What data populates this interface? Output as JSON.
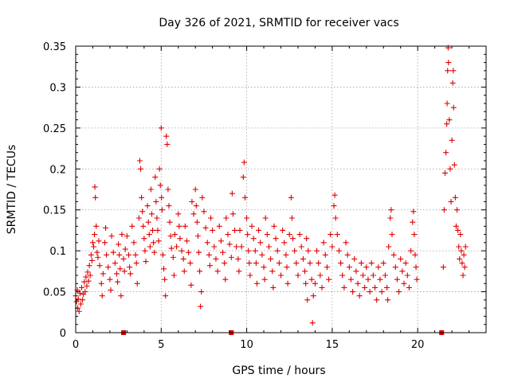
{
  "chart_data": {
    "type": "scatter",
    "title": "Day 326 of 2021, SRMTID for receiver vacs",
    "xlabel": "GPS time / hours",
    "ylabel": "SRMTID / TECUs",
    "xlim": [
      0,
      24
    ],
    "ylim": [
      0,
      0.35
    ],
    "x_ticks": [
      0,
      5,
      10,
      15,
      20
    ],
    "x_tick_labels": [
      "0",
      "5",
      "10",
      "15",
      "20"
    ],
    "y_ticks": [
      0,
      0.05,
      0.1,
      0.15,
      0.2,
      0.25,
      0.3,
      0.35
    ],
    "y_tick_labels": [
      "0",
      "0.05",
      "0.1",
      "0.15",
      "0.2",
      "0.25",
      "0.3",
      "0.35"
    ],
    "grid": true,
    "legend": "none",
    "marker": "+",
    "color": "#e00000",
    "gap_markers_x": [
      2.8,
      9.1,
      21.4
    ],
    "series": [
      {
        "name": "SRMTID",
        "points": [
          [
            0.0,
            0.045
          ],
          [
            0.05,
            0.038
          ],
          [
            0.1,
            0.052
          ],
          [
            0.12,
            0.03
          ],
          [
            0.15,
            0.041
          ],
          [
            0.2,
            0.026
          ],
          [
            0.25,
            0.048
          ],
          [
            0.3,
            0.035
          ],
          [
            0.35,
            0.055
          ],
          [
            0.4,
            0.04
          ],
          [
            0.45,
            0.047
          ],
          [
            0.5,
            0.062
          ],
          [
            0.55,
            0.05
          ],
          [
            0.6,
            0.068
          ],
          [
            0.65,
            0.057
          ],
          [
            0.7,
            0.074
          ],
          [
            0.75,
            0.063
          ],
          [
            0.8,
            0.082
          ],
          [
            0.85,
            0.07
          ],
          [
            0.9,
            0.095
          ],
          [
            0.95,
            0.088
          ],
          [
            1.0,
            0.11
          ],
          [
            1.05,
            0.105
          ],
          [
            1.1,
            0.12
          ],
          [
            1.12,
            0.178
          ],
          [
            1.15,
            0.165
          ],
          [
            1.2,
            0.13
          ],
          [
            1.25,
            0.098
          ],
          [
            1.3,
            0.092
          ],
          [
            1.35,
            0.112
          ],
          [
            1.4,
            0.082
          ],
          [
            1.5,
            0.06
          ],
          [
            1.55,
            0.045
          ],
          [
            1.6,
            0.072
          ],
          [
            1.7,
            0.11
          ],
          [
            1.75,
            0.128
          ],
          [
            1.8,
            0.095
          ],
          [
            1.9,
            0.08
          ],
          [
            2.0,
            0.065
          ],
          [
            2.05,
            0.052
          ],
          [
            2.1,
            0.118
          ],
          [
            2.2,
            0.098
          ],
          [
            2.3,
            0.085
          ],
          [
            2.4,
            0.072
          ],
          [
            2.45,
            0.062
          ],
          [
            2.5,
            0.108
          ],
          [
            2.55,
            0.095
          ],
          [
            2.6,
            0.078
          ],
          [
            2.65,
            0.045
          ],
          [
            2.7,
            0.12
          ],
          [
            2.8,
            0.09
          ],
          [
            2.85,
            0.075
          ],
          [
            2.9,
            0.102
          ],
          [
            3.0,
            0.118
          ],
          [
            3.1,
            0.095
          ],
          [
            3.15,
            0.08
          ],
          [
            3.2,
            0.072
          ],
          [
            3.3,
            0.13
          ],
          [
            3.4,
            0.11
          ],
          [
            3.5,
            0.095
          ],
          [
            3.55,
            0.085
          ],
          [
            3.6,
            0.06
          ],
          [
            3.7,
            0.14
          ],
          [
            3.75,
            0.21
          ],
          [
            3.8,
            0.2
          ],
          [
            3.85,
            0.165
          ],
          [
            3.9,
            0.148
          ],
          [
            3.95,
            0.13
          ],
          [
            4.0,
            0.115
          ],
          [
            4.05,
            0.1
          ],
          [
            4.1,
            0.087
          ],
          [
            4.2,
            0.155
          ],
          [
            4.25,
            0.135
          ],
          [
            4.3,
            0.12
          ],
          [
            4.35,
            0.105
          ],
          [
            4.4,
            0.175
          ],
          [
            4.45,
            0.145
          ],
          [
            4.5,
            0.125
          ],
          [
            4.55,
            0.11
          ],
          [
            4.6,
            0.098
          ],
          [
            4.65,
            0.19
          ],
          [
            4.7,
            0.16
          ],
          [
            4.75,
            0.14
          ],
          [
            4.8,
            0.125
          ],
          [
            4.85,
            0.112
          ],
          [
            4.9,
            0.2
          ],
          [
            4.95,
            0.18
          ],
          [
            5.0,
            0.25
          ],
          [
            5.02,
            0.165
          ],
          [
            5.05,
            0.15
          ],
          [
            5.1,
            0.095
          ],
          [
            5.15,
            0.078
          ],
          [
            5.2,
            0.065
          ],
          [
            5.25,
            0.045
          ],
          [
            5.3,
            0.24
          ],
          [
            5.35,
            0.23
          ],
          [
            5.4,
            0.175
          ],
          [
            5.45,
            0.155
          ],
          [
            5.5,
            0.135
          ],
          [
            5.55,
            0.118
          ],
          [
            5.6,
            0.103
          ],
          [
            5.7,
            0.092
          ],
          [
            5.75,
            0.07
          ],
          [
            5.8,
            0.12
          ],
          [
            5.9,
            0.105
          ],
          [
            6.0,
            0.145
          ],
          [
            6.05,
            0.13
          ],
          [
            6.1,
            0.115
          ],
          [
            6.2,
            0.1
          ],
          [
            6.3,
            0.09
          ],
          [
            6.35,
            0.075
          ],
          [
            6.4,
            0.13
          ],
          [
            6.5,
            0.112
          ],
          [
            6.6,
            0.098
          ],
          [
            6.7,
            0.085
          ],
          [
            6.75,
            0.058
          ],
          [
            6.8,
            0.16
          ],
          [
            6.9,
            0.145
          ],
          [
            7.0,
            0.175
          ],
          [
            7.05,
            0.155
          ],
          [
            7.1,
            0.135
          ],
          [
            7.15,
            0.118
          ],
          [
            7.2,
            0.098
          ],
          [
            7.25,
            0.075
          ],
          [
            7.3,
            0.032
          ],
          [
            7.35,
            0.05
          ],
          [
            7.4,
            0.165
          ],
          [
            7.5,
            0.148
          ],
          [
            7.6,
            0.128
          ],
          [
            7.7,
            0.11
          ],
          [
            7.8,
            0.095
          ],
          [
            7.85,
            0.082
          ],
          [
            7.9,
            0.14
          ],
          [
            8.0,
            0.125
          ],
          [
            8.1,
            0.105
          ],
          [
            8.2,
            0.09
          ],
          [
            8.3,
            0.075
          ],
          [
            8.4,
            0.13
          ],
          [
            8.5,
            0.112
          ],
          [
            8.6,
            0.098
          ],
          [
            8.7,
            0.085
          ],
          [
            8.75,
            0.065
          ],
          [
            8.8,
            0.14
          ],
          [
            8.9,
            0.12
          ],
          [
            9.0,
            0.108
          ],
          [
            9.1,
            0.092
          ],
          [
            9.15,
            0.17
          ],
          [
            9.2,
            0.145
          ],
          [
            9.3,
            0.125
          ],
          [
            9.4,
            0.105
          ],
          [
            9.5,
            0.09
          ],
          [
            9.55,
            0.075
          ],
          [
            9.6,
            0.125
          ],
          [
            9.7,
            0.105
          ],
          [
            9.8,
            0.19
          ],
          [
            9.85,
            0.208
          ],
          [
            9.9,
            0.165
          ],
          [
            10.0,
            0.14
          ],
          [
            10.05,
            0.12
          ],
          [
            10.1,
            0.1
          ],
          [
            10.15,
            0.085
          ],
          [
            10.2,
            0.07
          ],
          [
            10.3,
            0.13
          ],
          [
            10.4,
            0.115
          ],
          [
            10.5,
            0.1
          ],
          [
            10.55,
            0.085
          ],
          [
            10.6,
            0.06
          ],
          [
            10.7,
            0.125
          ],
          [
            10.8,
            0.11
          ],
          [
            10.9,
            0.095
          ],
          [
            11.0,
            0.08
          ],
          [
            11.05,
            0.065
          ],
          [
            11.1,
            0.14
          ],
          [
            11.2,
            0.12
          ],
          [
            11.3,
            0.105
          ],
          [
            11.4,
            0.09
          ],
          [
            11.5,
            0.075
          ],
          [
            11.55,
            0.055
          ],
          [
            11.6,
            0.13
          ],
          [
            11.7,
            0.115
          ],
          [
            11.8,
            0.1
          ],
          [
            11.9,
            0.085
          ],
          [
            12.0,
            0.07
          ],
          [
            12.1,
            0.125
          ],
          [
            12.2,
            0.11
          ],
          [
            12.3,
            0.095
          ],
          [
            12.35,
            0.08
          ],
          [
            12.4,
            0.06
          ],
          [
            12.5,
            0.12
          ],
          [
            12.6,
            0.165
          ],
          [
            12.65,
            0.14
          ],
          [
            12.7,
            0.115
          ],
          [
            12.8,
            0.1
          ],
          [
            12.9,
            0.085
          ],
          [
            13.0,
            0.07
          ],
          [
            13.1,
            0.12
          ],
          [
            13.2,
            0.105
          ],
          [
            13.3,
            0.09
          ],
          [
            13.4,
            0.075
          ],
          [
            13.45,
            0.06
          ],
          [
            13.5,
            0.115
          ],
          [
            13.55,
            0.04
          ],
          [
            13.6,
            0.1
          ],
          [
            13.7,
            0.085
          ],
          [
            13.8,
            0.065
          ],
          [
            13.85,
            0.012
          ],
          [
            13.9,
            0.045
          ],
          [
            14.0,
            0.06
          ],
          [
            14.1,
            0.1
          ],
          [
            14.2,
            0.085
          ],
          [
            14.3,
            0.07
          ],
          [
            14.4,
            0.055
          ],
          [
            14.5,
            0.11
          ],
          [
            14.6,
            0.095
          ],
          [
            14.7,
            0.08
          ],
          [
            14.8,
            0.065
          ],
          [
            14.9,
            0.12
          ],
          [
            15.0,
            0.105
          ],
          [
            15.1,
            0.155
          ],
          [
            15.15,
            0.168
          ],
          [
            15.2,
            0.14
          ],
          [
            15.3,
            0.12
          ],
          [
            15.4,
            0.1
          ],
          [
            15.5,
            0.085
          ],
          [
            15.6,
            0.07
          ],
          [
            15.7,
            0.055
          ],
          [
            15.8,
            0.11
          ],
          [
            15.9,
            0.095
          ],
          [
            16.0,
            0.08
          ],
          [
            16.1,
            0.065
          ],
          [
            16.2,
            0.05
          ],
          [
            16.3,
            0.09
          ],
          [
            16.4,
            0.075
          ],
          [
            16.5,
            0.06
          ],
          [
            16.6,
            0.045
          ],
          [
            16.7,
            0.085
          ],
          [
            16.8,
            0.07
          ],
          [
            16.9,
            0.055
          ],
          [
            17.0,
            0.08
          ],
          [
            17.1,
            0.065
          ],
          [
            17.2,
            0.05
          ],
          [
            17.3,
            0.085
          ],
          [
            17.4,
            0.07
          ],
          [
            17.5,
            0.055
          ],
          [
            17.6,
            0.04
          ],
          [
            17.7,
            0.08
          ],
          [
            17.8,
            0.065
          ],
          [
            17.9,
            0.05
          ],
          [
            18.0,
            0.085
          ],
          [
            18.1,
            0.07
          ],
          [
            18.2,
            0.055
          ],
          [
            18.25,
            0.04
          ],
          [
            18.3,
            0.105
          ],
          [
            18.4,
            0.14
          ],
          [
            18.45,
            0.15
          ],
          [
            18.5,
            0.12
          ],
          [
            18.6,
            0.095
          ],
          [
            18.7,
            0.08
          ],
          [
            18.8,
            0.065
          ],
          [
            18.9,
            0.05
          ],
          [
            19.0,
            0.09
          ],
          [
            19.1,
            0.075
          ],
          [
            19.2,
            0.06
          ],
          [
            19.3,
            0.085
          ],
          [
            19.4,
            0.07
          ],
          [
            19.5,
            0.055
          ],
          [
            19.6,
            0.1
          ],
          [
            19.7,
            0.135
          ],
          [
            19.75,
            0.148
          ],
          [
            19.8,
            0.12
          ],
          [
            19.85,
            0.095
          ],
          [
            19.9,
            0.08
          ],
          [
            19.95,
            0.065
          ],
          [
            21.5,
            0.08
          ],
          [
            21.55,
            0.15
          ],
          [
            21.6,
            0.195
          ],
          [
            21.65,
            0.22
          ],
          [
            21.7,
            0.255
          ],
          [
            21.72,
            0.28
          ],
          [
            21.75,
            0.32
          ],
          [
            21.78,
            0.348
          ],
          [
            21.8,
            0.33
          ],
          [
            21.85,
            0.26
          ],
          [
            21.9,
            0.2
          ],
          [
            21.95,
            0.16
          ],
          [
            22.0,
            0.235
          ],
          [
            22.05,
            0.305
          ],
          [
            22.08,
            0.32
          ],
          [
            22.1,
            0.275
          ],
          [
            22.15,
            0.205
          ],
          [
            22.2,
            0.165
          ],
          [
            22.25,
            0.13
          ],
          [
            22.3,
            0.15
          ],
          [
            22.35,
            0.125
          ],
          [
            22.4,
            0.105
          ],
          [
            22.45,
            0.09
          ],
          [
            22.5,
            0.12
          ],
          [
            22.55,
            0.1
          ],
          [
            22.6,
            0.085
          ],
          [
            22.65,
            0.07
          ],
          [
            22.7,
            0.095
          ],
          [
            22.75,
            0.08
          ],
          [
            22.8,
            0.105
          ]
        ]
      }
    ]
  }
}
